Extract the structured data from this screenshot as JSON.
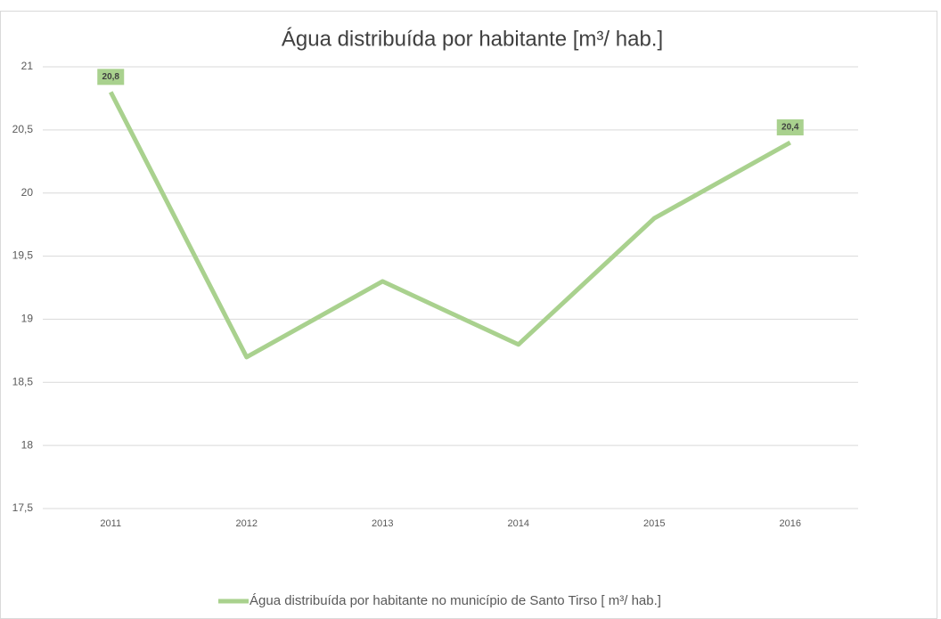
{
  "chart_data": {
    "type": "line",
    "title": "Água distribuída por habitante [m³/ hab.]",
    "categories": [
      "2011",
      "2012",
      "2013",
      "2014",
      "2015",
      "2016"
    ],
    "series": [
      {
        "name": "Água distribuída por habitante no município de Santo Tirso [ m³/ hab.]",
        "color": "#a9d18e",
        "values": [
          20.8,
          18.7,
          19.3,
          18.8,
          19.8,
          20.4
        ],
        "value_labels": [
          "20,8",
          null,
          null,
          null,
          null,
          "20,4"
        ]
      }
    ],
    "ylim": [
      17.5,
      21
    ],
    "yticks": [
      {
        "value": 17.5,
        "label": "17,5"
      },
      18,
      {
        "value": 18.5,
        "label": "18,5"
      },
      19,
      {
        "value": 19.5,
        "label": "19,5"
      },
      20,
      {
        "value": 20.5,
        "label": "20,5"
      },
      21
    ],
    "grid": true,
    "legend": "bottom"
  }
}
